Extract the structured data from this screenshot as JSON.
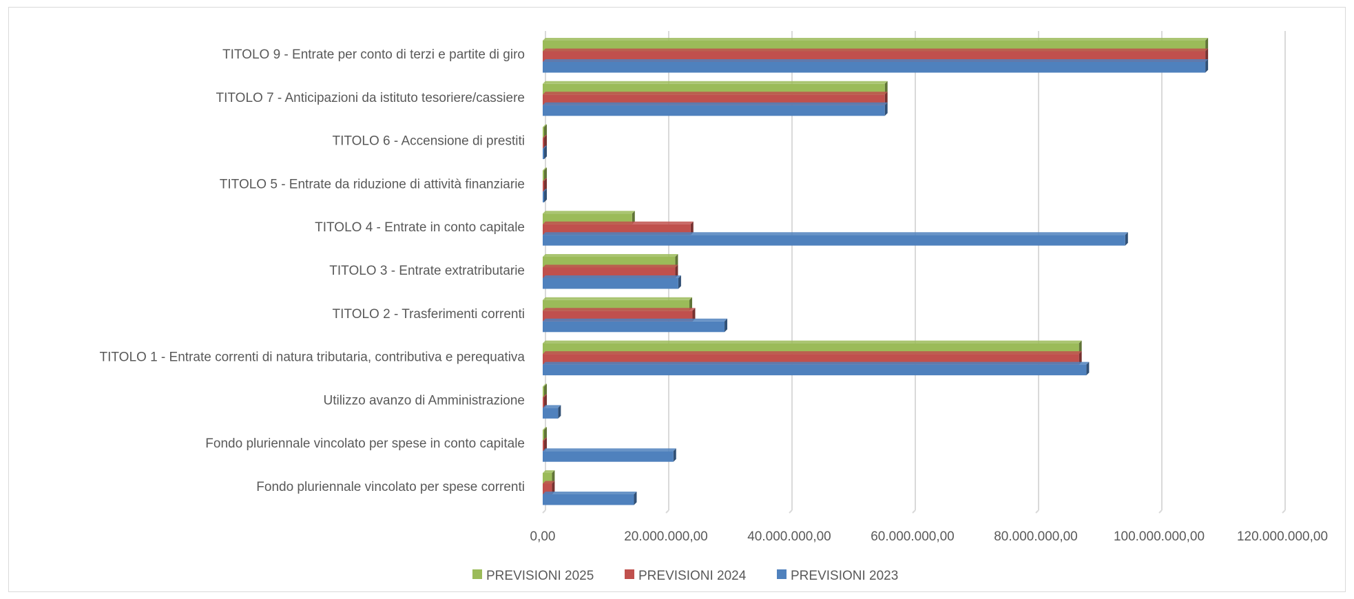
{
  "chart_data": {
    "type": "bar",
    "orientation": "horizontal",
    "categories": [
      "TITOLO 9 - Entrate per conto di terzi e partite di giro",
      "TITOLO 7 - Anticipazioni da istituto tesoriere/cassiere",
      "TITOLO 6 - Accensione di prestiti",
      "TITOLO 5 - Entrate da riduzione di attività finanziarie",
      "TITOLO 4 - Entrate in conto capitale",
      "TITOLO 3 - Entrate extratributarie",
      "TITOLO 2 - Trasferimenti correnti",
      "TITOLO 1 - Entrate correnti di natura tributaria, contributiva e perequativa",
      "Utilizzo avanzo di Amministrazione",
      "Fondo pluriennale vincolato per spese in conto capitale",
      "Fondo pluriennale vincolato per spese correnti"
    ],
    "series": [
      {
        "name": "PREVISIONI 2025",
        "color": "#9bbb59",
        "values": [
          107500000,
          55500000,
          0,
          0,
          14500000,
          21500000,
          23800000,
          87000000,
          0,
          0,
          1500000
        ]
      },
      {
        "name": "PREVISIONI 2024",
        "color": "#c0504d",
        "values": [
          107500000,
          55500000,
          0,
          0,
          24000000,
          21500000,
          24300000,
          87000000,
          0,
          0,
          1500000
        ]
      },
      {
        "name": "PREVISIONI 2023",
        "color": "#4f81bd",
        "values": [
          107500000,
          55500000,
          0,
          0,
          94500000,
          22000000,
          29500000,
          88200000,
          2500000,
          21200000,
          14800000
        ]
      }
    ],
    "xlim": [
      0,
      120000000
    ],
    "ticks": [
      "0,00",
      "20.000.000,00",
      "40.000.000,00",
      "60.000.000,00",
      "80.000.000,00",
      "100.000.000,00",
      "120.000.000,00"
    ],
    "tick_values": [
      0,
      20000000,
      40000000,
      60000000,
      80000000,
      100000000,
      120000000
    ],
    "grid": true,
    "legend_position": "bottom",
    "legend": [
      "PREVISIONI 2025",
      "PREVISIONI 2024",
      "PREVISIONI 2023"
    ]
  }
}
